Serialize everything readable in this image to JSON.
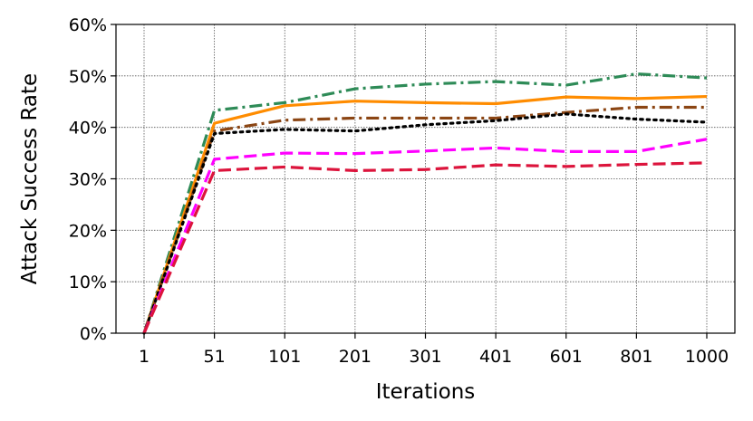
{
  "chart_data": {
    "type": "line",
    "xlabel": "Iterations",
    "ylabel": "Attack Success Rate",
    "categories": [
      "1",
      "51",
      "101",
      "201",
      "301",
      "401",
      "601",
      "801",
      "1000"
    ],
    "ylim": [
      0,
      60
    ],
    "yticks": [
      "0%",
      "10%",
      "20%",
      "30%",
      "40%",
      "50%",
      "60%"
    ],
    "grid": true,
    "series": [
      {
        "values": [
          0,
          43.3,
          44.8,
          47.5,
          48.4,
          48.9,
          48.2,
          50.4,
          49.6
        ],
        "color": "#2e8b57",
        "style": "dashdot"
      },
      {
        "values": [
          0,
          40.8,
          44.2,
          45.1,
          44.8,
          44.6,
          45.9,
          45.6,
          46.0
        ],
        "color": "#ff8c00",
        "style": "solid"
      },
      {
        "values": [
          0,
          39.3,
          41.4,
          41.8,
          41.8,
          41.8,
          42.9,
          43.9,
          43.9
        ],
        "color": "#8b4513",
        "style": "dashdot"
      },
      {
        "values": [
          0,
          38.8,
          39.6,
          39.3,
          40.5,
          41.3,
          42.6,
          41.6,
          41.0
        ],
        "color": "#000000",
        "style": "dotted"
      },
      {
        "values": [
          0,
          33.8,
          35.0,
          34.9,
          35.4,
          36.0,
          35.3,
          35.3,
          37.7
        ],
        "color": "#ff00ff",
        "style": "dashed"
      },
      {
        "values": [
          0,
          31.6,
          32.3,
          31.6,
          31.8,
          32.7,
          32.4,
          32.8,
          33.1
        ],
        "color": "#dc143c",
        "style": "dashed"
      }
    ]
  }
}
